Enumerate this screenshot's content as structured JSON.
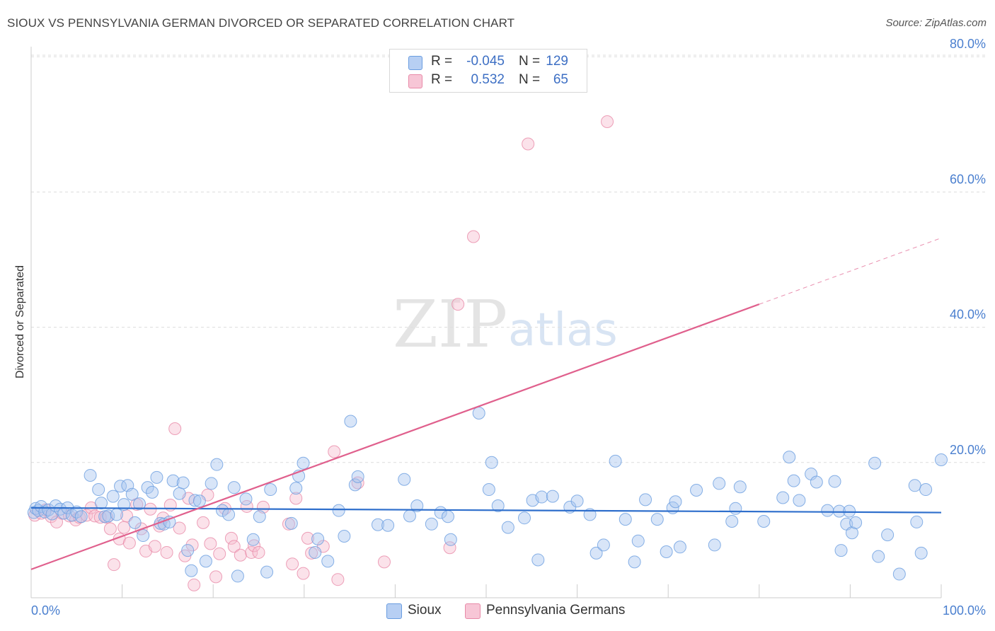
{
  "header": {
    "title": "SIOUX VS PENNSYLVANIA GERMAN DIVORCED OR SEPARATED CORRELATION CHART",
    "source": "Source: ZipAtlas.com"
  },
  "legend": {
    "series1": {
      "r_label": "R =",
      "r_value": "-0.045",
      "n_label": "N =",
      "n_value": "129"
    },
    "series2": {
      "r_label": "R =",
      "r_value": "0.532",
      "n_label": "N =",
      "n_value": "65"
    }
  },
  "bottom_legend": {
    "series1": "Sioux",
    "series2": "Pennsylvania Germans"
  },
  "watermark": {
    "zip": "ZIP",
    "atlas": "atlas"
  },
  "colors": {
    "sioux_fill": "#a9c6ef",
    "sioux_stroke": "#6a9de0",
    "sioux_line": "#2f6fcc",
    "pg_fill": "#f6bed0",
    "pg_stroke": "#e88aa8",
    "pg_line": "#e0608d",
    "grid": "#dddddd",
    "axis_text": "#4a7fcf"
  },
  "chart_data": {
    "type": "scatter",
    "title": "SIOUX VS PENNSYLVANIA GERMAN DIVORCED OR SEPARATED CORRELATION CHART",
    "xlabel": "",
    "ylabel": "Divorced or Separated",
    "xlim": [
      0,
      100
    ],
    "ylim": [
      0,
      83
    ],
    "x_tick_labels": [
      {
        "value": 0,
        "label": "0.0%"
      },
      {
        "value": 100,
        "label": "100.0%"
      }
    ],
    "x_minor_ticks": [
      10,
      20,
      30,
      40,
      50,
      60,
      70,
      80,
      90,
      100
    ],
    "y_ticks": [
      {
        "value": 20,
        "label": "20.0%"
      },
      {
        "value": 40,
        "label": "40.0%"
      },
      {
        "value": 60,
        "label": "60.0%"
      },
      {
        "value": 80,
        "label": "80.0%"
      }
    ],
    "series": [
      {
        "name": "Sioux",
        "r": -0.045,
        "n": 129,
        "trend": {
          "x": [
            0,
            100
          ],
          "y": [
            13.3,
            12.6
          ],
          "solid_to": 100
        },
        "points": [
          [
            0.3,
            12.6
          ],
          [
            0.5,
            13.2
          ],
          [
            0.8,
            12.9
          ],
          [
            1.1,
            13.5
          ],
          [
            1.5,
            12.7
          ],
          [
            1.9,
            13.0
          ],
          [
            2.3,
            12.4
          ],
          [
            2.7,
            13.6
          ],
          [
            3.2,
            13.1
          ],
          [
            3.6,
            12.5
          ],
          [
            4.0,
            13.3
          ],
          [
            4.5,
            12.2
          ],
          [
            5.0,
            12.7
          ],
          [
            5.5,
            12.0
          ],
          [
            6.5,
            18.1
          ],
          [
            7.4,
            16.0
          ],
          [
            7.7,
            14.0
          ],
          [
            8.1,
            12.0
          ],
          [
            8.5,
            12.1
          ],
          [
            9.0,
            15.0
          ],
          [
            9.4,
            12.3
          ],
          [
            9.8,
            16.5
          ],
          [
            10.2,
            13.8
          ],
          [
            10.6,
            16.6
          ],
          [
            11.1,
            15.3
          ],
          [
            11.4,
            11.1
          ],
          [
            11.9,
            13.9
          ],
          [
            12.3,
            9.2
          ],
          [
            12.8,
            16.3
          ],
          [
            13.3,
            15.6
          ],
          [
            13.8,
            17.8
          ],
          [
            14.2,
            11.0
          ],
          [
            14.6,
            10.9
          ],
          [
            15.2,
            11.2
          ],
          [
            15.6,
            17.3
          ],
          [
            16.3,
            15.4
          ],
          [
            16.7,
            17.0
          ],
          [
            17.2,
            7.0
          ],
          [
            17.6,
            4.0
          ],
          [
            18.0,
            14.4
          ],
          [
            18.5,
            14.3
          ],
          [
            19.2,
            5.4
          ],
          [
            19.8,
            16.9
          ],
          [
            20.4,
            19.7
          ],
          [
            21.0,
            12.9
          ],
          [
            21.7,
            12.3
          ],
          [
            22.3,
            16.3
          ],
          [
            22.7,
            3.2
          ],
          [
            23.6,
            14.6
          ],
          [
            24.4,
            8.6
          ],
          [
            25.1,
            12.0
          ],
          [
            25.9,
            3.8
          ],
          [
            26.3,
            16.0
          ],
          [
            28.6,
            11.0
          ],
          [
            29.1,
            16.2
          ],
          [
            29.4,
            18.0
          ],
          [
            29.9,
            19.9
          ],
          [
            31.2,
            6.7
          ],
          [
            31.5,
            8.7
          ],
          [
            32.6,
            5.4
          ],
          [
            33.8,
            12.9
          ],
          [
            34.4,
            9.1
          ],
          [
            35.1,
            26.1
          ],
          [
            35.6,
            16.7
          ],
          [
            35.9,
            17.9
          ],
          [
            38.1,
            10.8
          ],
          [
            39.2,
            10.7
          ],
          [
            41.0,
            17.5
          ],
          [
            41.6,
            12.1
          ],
          [
            42.4,
            13.6
          ],
          [
            44.0,
            10.9
          ],
          [
            45.0,
            12.6
          ],
          [
            45.8,
            12.0
          ],
          [
            46.1,
            8.6
          ],
          [
            49.2,
            27.3
          ],
          [
            50.3,
            16.0
          ],
          [
            50.6,
            20.0
          ],
          [
            51.3,
            13.6
          ],
          [
            52.4,
            10.4
          ],
          [
            54.2,
            11.8
          ],
          [
            55.1,
            14.4
          ],
          [
            55.7,
            5.6
          ],
          [
            56.1,
            14.9
          ],
          [
            57.3,
            15.0
          ],
          [
            59.2,
            13.4
          ],
          [
            60.0,
            14.3
          ],
          [
            61.4,
            12.3
          ],
          [
            62.1,
            6.6
          ],
          [
            62.9,
            7.8
          ],
          [
            64.2,
            20.2
          ],
          [
            65.3,
            11.6
          ],
          [
            66.3,
            5.3
          ],
          [
            66.7,
            8.4
          ],
          [
            67.5,
            14.5
          ],
          [
            68.8,
            11.6
          ],
          [
            69.8,
            6.8
          ],
          [
            70.5,
            13.3
          ],
          [
            70.8,
            14.2
          ],
          [
            71.3,
            7.5
          ],
          [
            73.1,
            15.9
          ],
          [
            75.1,
            7.8
          ],
          [
            75.6,
            16.9
          ],
          [
            77.0,
            11.3
          ],
          [
            77.4,
            13.2
          ],
          [
            77.9,
            16.4
          ],
          [
            80.5,
            11.3
          ],
          [
            82.6,
            14.8
          ],
          [
            83.3,
            20.8
          ],
          [
            83.8,
            17.3
          ],
          [
            84.4,
            14.4
          ],
          [
            85.7,
            18.3
          ],
          [
            86.3,
            17.1
          ],
          [
            87.5,
            12.9
          ],
          [
            88.3,
            17.2
          ],
          [
            88.8,
            12.8
          ],
          [
            89.0,
            7.0
          ],
          [
            89.6,
            10.9
          ],
          [
            89.9,
            12.8
          ],
          [
            90.2,
            9.6
          ],
          [
            90.6,
            11.1
          ],
          [
            92.7,
            19.9
          ],
          [
            93.1,
            6.1
          ],
          [
            94.1,
            9.3
          ],
          [
            95.4,
            3.5
          ],
          [
            97.1,
            16.6
          ],
          [
            97.3,
            11.2
          ],
          [
            97.8,
            6.6
          ],
          [
            98.3,
            16.0
          ],
          [
            100.0,
            20.4
          ]
        ]
      },
      {
        "name": "Pennsylvania Germans",
        "r": 0.532,
        "n": 65,
        "trend": {
          "x": [
            0,
            100
          ],
          "y": [
            4.2,
            53.2
          ],
          "solid_to": 80
        },
        "points": [
          [
            0.4,
            12.2
          ],
          [
            1.1,
            12.5
          ],
          [
            1.6,
            13.0
          ],
          [
            2.2,
            12.0
          ],
          [
            2.8,
            11.2
          ],
          [
            3.4,
            12.5
          ],
          [
            4.2,
            12.1
          ],
          [
            4.9,
            11.5
          ],
          [
            5.3,
            11.9
          ],
          [
            6.1,
            12.2
          ],
          [
            6.6,
            13.3
          ],
          [
            7.0,
            12.1
          ],
          [
            7.6,
            11.9
          ],
          [
            8.3,
            11.9
          ],
          [
            8.7,
            10.2
          ],
          [
            9.1,
            4.9
          ],
          [
            9.7,
            8.7
          ],
          [
            10.2,
            10.4
          ],
          [
            10.5,
            12.1
          ],
          [
            10.8,
            8.1
          ],
          [
            11.6,
            13.8
          ],
          [
            12.1,
            10.2
          ],
          [
            12.6,
            6.9
          ],
          [
            13.1,
            13.1
          ],
          [
            13.6,
            7.6
          ],
          [
            14.1,
            10.6
          ],
          [
            14.5,
            11.8
          ],
          [
            14.9,
            6.7
          ],
          [
            15.3,
            13.7
          ],
          [
            15.8,
            25.0
          ],
          [
            16.3,
            10.3
          ],
          [
            16.9,
            6.2
          ],
          [
            17.3,
            14.7
          ],
          [
            17.7,
            7.8
          ],
          [
            17.9,
            1.9
          ],
          [
            18.9,
            11.1
          ],
          [
            19.4,
            15.2
          ],
          [
            19.7,
            8.0
          ],
          [
            20.3,
            3.1
          ],
          [
            20.7,
            6.5
          ],
          [
            21.3,
            13.2
          ],
          [
            22.0,
            8.8
          ],
          [
            22.3,
            7.6
          ],
          [
            23.0,
            6.3
          ],
          [
            23.7,
            13.5
          ],
          [
            24.2,
            6.7
          ],
          [
            24.5,
            7.7
          ],
          [
            25.0,
            6.7
          ],
          [
            25.5,
            13.4
          ],
          [
            28.3,
            10.9
          ],
          [
            28.7,
            5.0
          ],
          [
            29.1,
            14.7
          ],
          [
            29.9,
            3.6
          ],
          [
            30.4,
            8.8
          ],
          [
            30.8,
            6.6
          ],
          [
            32.1,
            7.6
          ],
          [
            33.3,
            21.6
          ],
          [
            33.7,
            2.7
          ],
          [
            35.9,
            17.0
          ],
          [
            38.8,
            5.3
          ],
          [
            46.0,
            7.4
          ],
          [
            46.9,
            43.4
          ],
          [
            48.6,
            53.4
          ],
          [
            54.6,
            67.1
          ],
          [
            63.3,
            70.4
          ]
        ]
      }
    ]
  }
}
